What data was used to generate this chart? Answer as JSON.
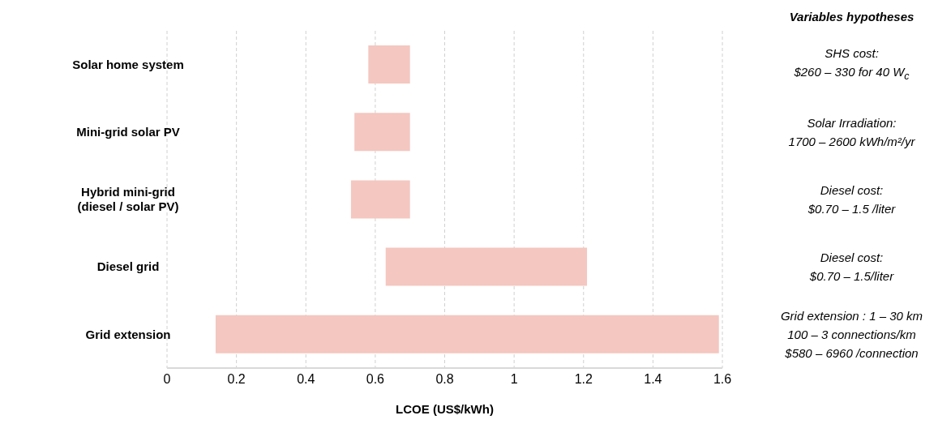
{
  "chart_data": {
    "type": "bar",
    "orientation": "horizontal",
    "xlabel": "LCOE (US$/kWh)",
    "categories": [
      "Solar home system",
      "Mini-grid solar PV",
      "Hybrid mini-grid\n(diesel / solar PV)",
      "Diesel grid",
      "Grid extension"
    ],
    "base": [
      0.58,
      0.54,
      0.53,
      0.63,
      0.14
    ],
    "values": [
      0.12,
      0.16,
      0.17,
      0.58,
      1.45
    ],
    "color": "#f4c7c0",
    "xlim": [
      0,
      1.6
    ],
    "xticks": [
      0,
      0.2,
      0.4,
      0.6,
      0.8,
      1,
      1.2,
      1.4,
      1.6
    ],
    "grid": "x",
    "annotations": [
      "Variables hypotheses",
      "SHS cost:\n$260 – 330 for 40 W$_{c}$",
      "Solar Irradiation:\n1700 – 2600 kWh/m²/yr",
      "Diesel cost:\n$0.70 – 1.5 /liter",
      "Diesel cost:\n$0.70 – 1.5/liter",
      "Grid extension : 1 – 30 km\n100 – 3 connections/km\n$580 – 6960 /connection"
    ]
  }
}
